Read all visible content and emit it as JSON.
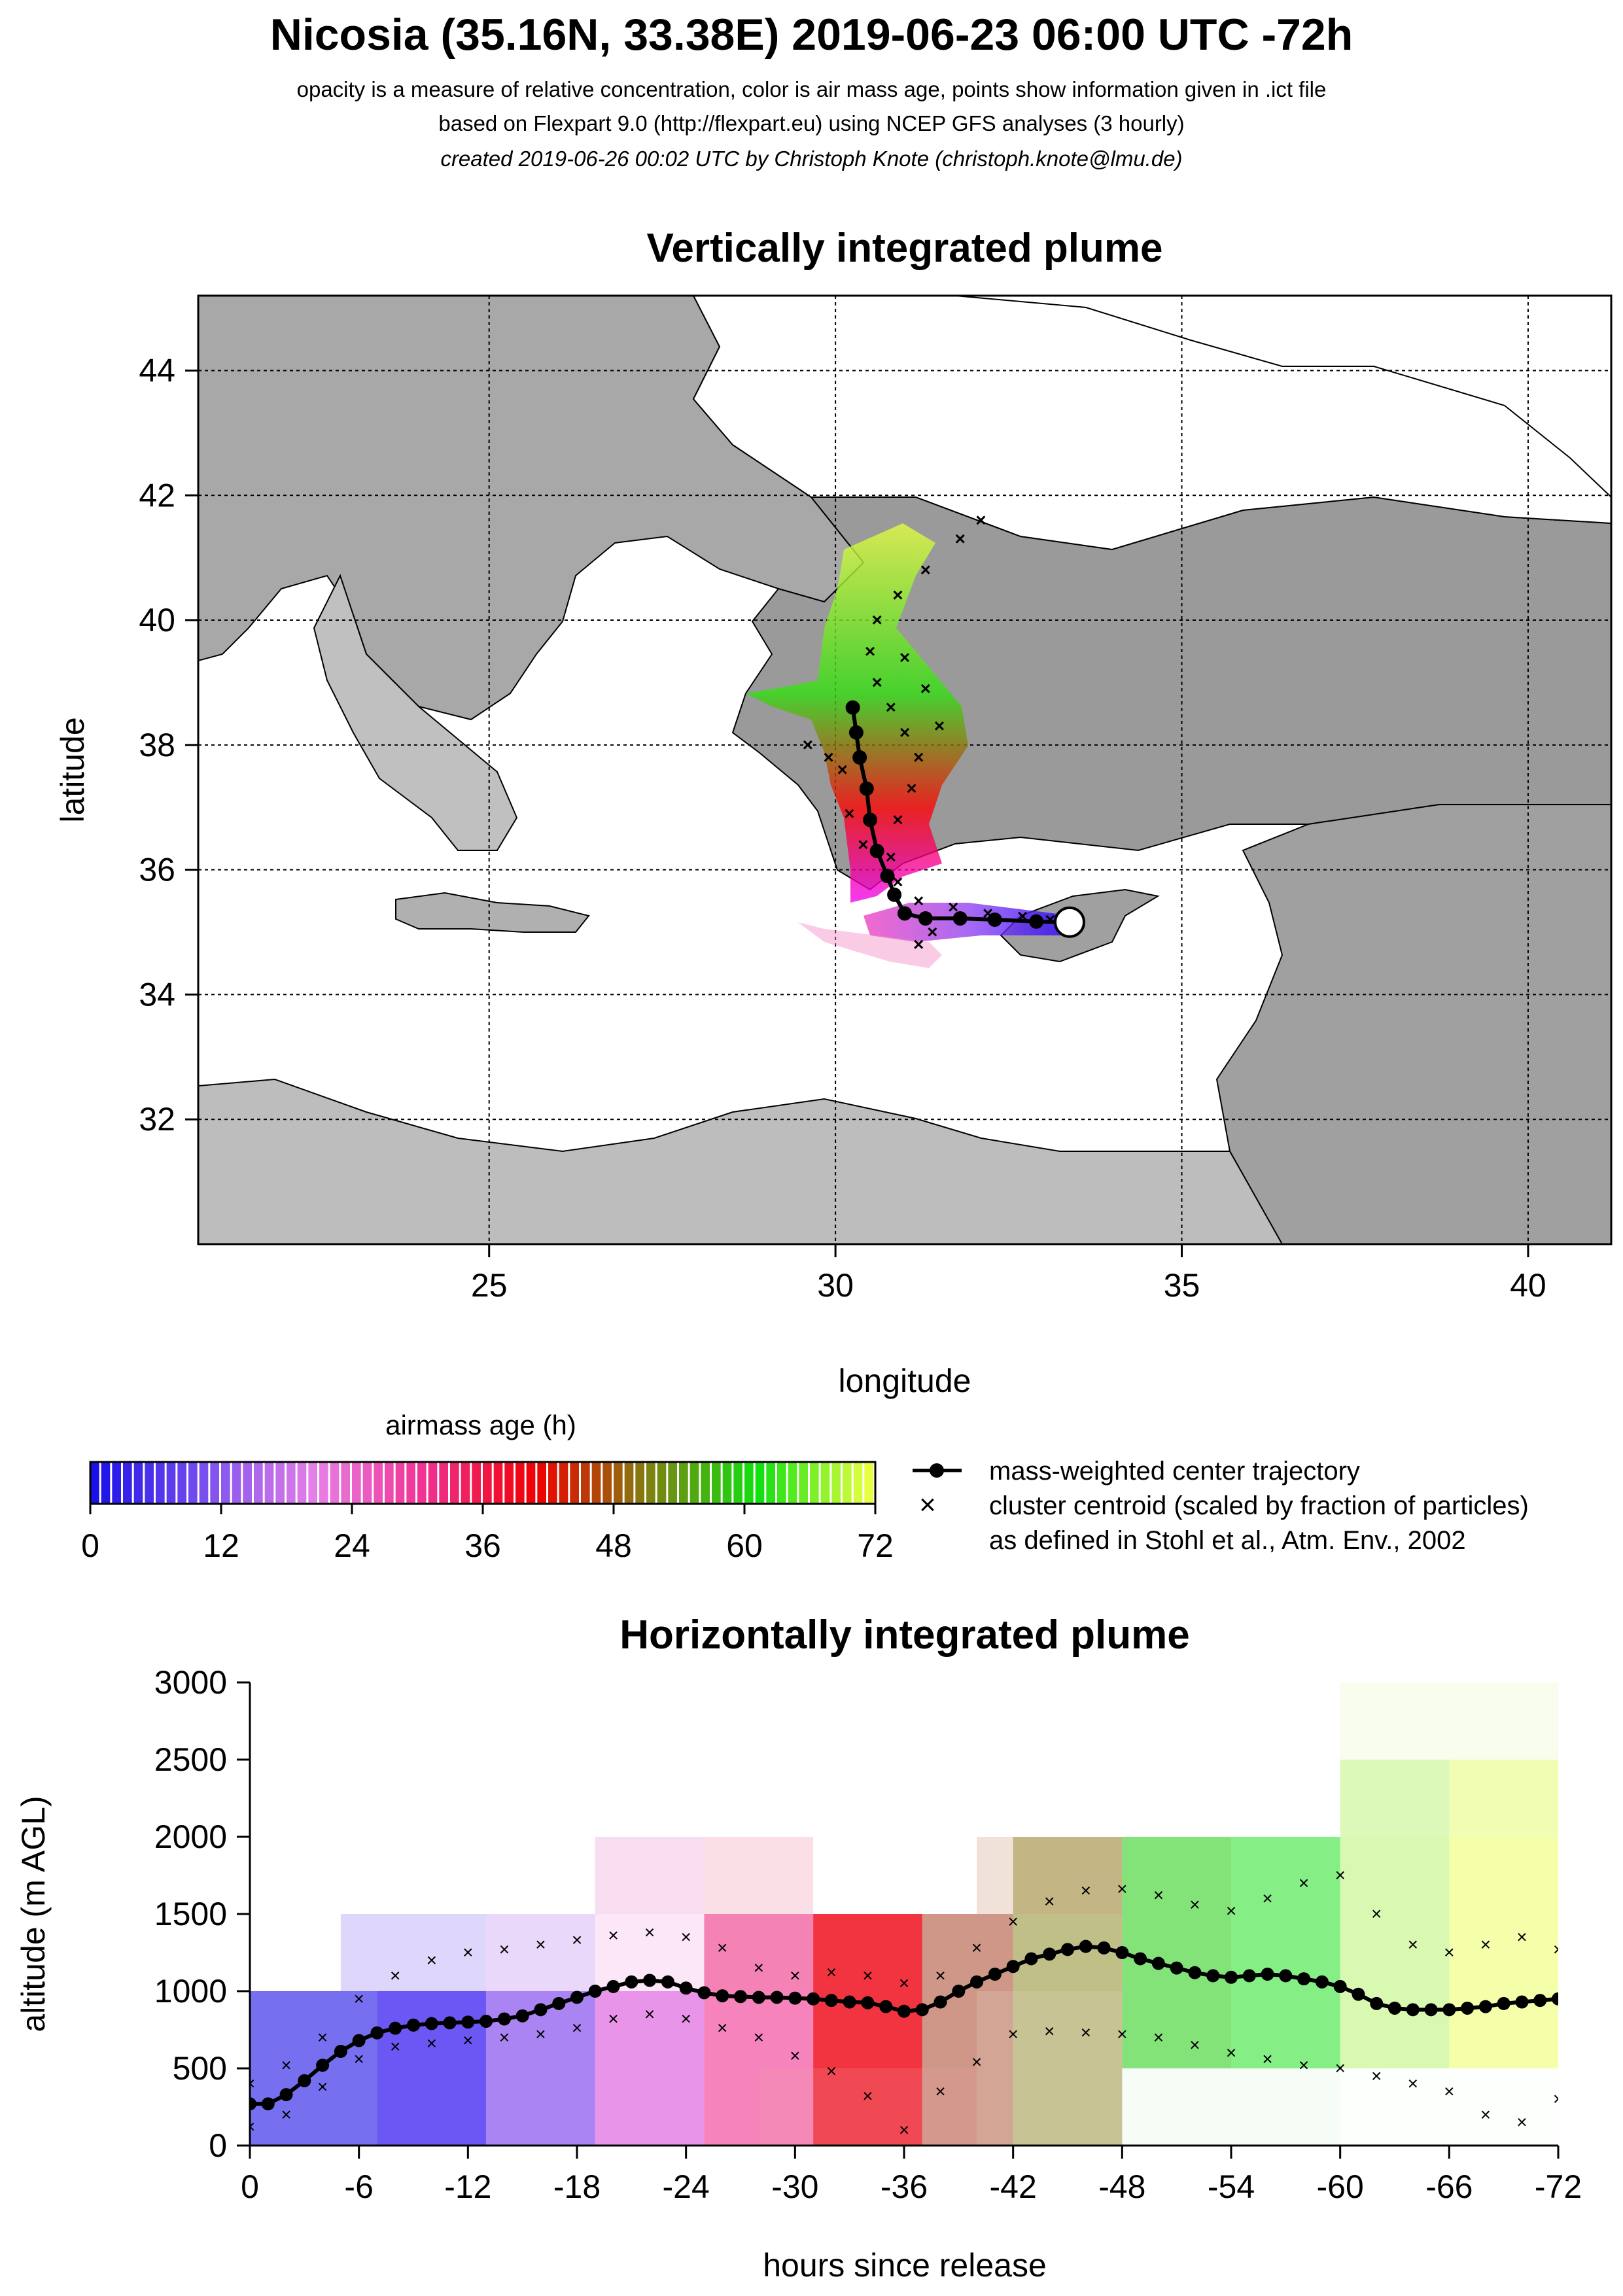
{
  "header": {
    "title": "Nicosia (35.16N, 33.38E) 2019-06-23 06:00 UTC -72h",
    "subtitle1": "opacity is a measure of relative concentration, color is air mass age, points show information given in .ict file",
    "subtitle2": "based on Flexpart 9.0 (http://flexpart.eu) using NCEP GFS analyses (3 hourly)",
    "subtitle3": "created 2019-06-26 00:02 UTC by Christoph Knote (christoph.knote@lmu.de)"
  },
  "colors": {
    "land": "#a8a8a8",
    "sea": "#ffffff",
    "age_scale": [
      "#1a10e8",
      "#7a50f0",
      "#e880e8",
      "#f03090",
      "#f00000",
      "#808010",
      "#10e010",
      "#e8ff40"
    ]
  },
  "chart_data": [
    {
      "type": "map",
      "title": "Vertically integrated plume",
      "xlabel": "longitude",
      "ylabel": "latitude",
      "xlim": [
        20.8,
        41.2
      ],
      "ylim": [
        30.0,
        45.2
      ],
      "xticks": [
        "25",
        "30",
        "35",
        "40"
      ],
      "yticks": [
        "32",
        "34",
        "36",
        "38",
        "40",
        "42",
        "44"
      ],
      "grid": true,
      "release_point": {
        "lon": 33.38,
        "lat": 35.16
      },
      "center_trajectory": [
        [
          33.38,
          35.16
        ],
        [
          32.9,
          35.17
        ],
        [
          32.3,
          35.2
        ],
        [
          31.8,
          35.22
        ],
        [
          31.3,
          35.22
        ],
        [
          31.0,
          35.3
        ],
        [
          30.85,
          35.6
        ],
        [
          30.75,
          35.9
        ],
        [
          30.6,
          36.3
        ],
        [
          30.5,
          36.8
        ],
        [
          30.45,
          37.3
        ],
        [
          30.35,
          37.8
        ],
        [
          30.3,
          38.2
        ],
        [
          30.25,
          38.6
        ]
      ],
      "cluster_centroids": [
        [
          33.1,
          35.2
        ],
        [
          32.7,
          35.25
        ],
        [
          32.2,
          35.3
        ],
        [
          31.7,
          35.4
        ],
        [
          31.2,
          35.5
        ],
        [
          30.9,
          35.8
        ],
        [
          30.8,
          36.2
        ],
        [
          30.9,
          36.8
        ],
        [
          31.1,
          37.3
        ],
        [
          31.2,
          37.8
        ],
        [
          31.0,
          38.2
        ],
        [
          30.8,
          38.6
        ],
        [
          30.6,
          39.0
        ],
        [
          30.5,
          39.5
        ],
        [
          30.6,
          40.0
        ],
        [
          30.9,
          40.4
        ],
        [
          31.3,
          40.8
        ],
        [
          31.8,
          41.3
        ],
        [
          32.1,
          41.6
        ],
        [
          30.1,
          37.6
        ],
        [
          29.9,
          37.8
        ],
        [
          29.6,
          38.0
        ],
        [
          30.4,
          36.4
        ],
        [
          30.2,
          36.9
        ],
        [
          31.4,
          35.0
        ],
        [
          31.2,
          34.8
        ],
        [
          31.5,
          38.3
        ],
        [
          31.3,
          38.9
        ],
        [
          31.0,
          39.4
        ]
      ],
      "plume_ages": [
        "0",
        "12",
        "24",
        "36",
        "48",
        "60",
        "72"
      ]
    },
    {
      "type": "heatmap",
      "title": "Horizontally integrated plume",
      "xlabel": "hours since release",
      "ylabel": "altitude (m AGL)",
      "xlim": [
        0,
        -72
      ],
      "ylim": [
        0,
        3000
      ],
      "xticks": [
        "0",
        "-6",
        "-12",
        "-18",
        "-24",
        "-30",
        "-36",
        "-42",
        "-48",
        "-54",
        "-60",
        "-66",
        "-72"
      ],
      "yticks": [
        "0",
        "500",
        "1000",
        "1500",
        "2000",
        "2500",
        "3000"
      ],
      "center_altitude": [
        [
          0,
          270
        ],
        [
          -1,
          270
        ],
        [
          -2,
          330
        ],
        [
          -3,
          420
        ],
        [
          -4,
          520
        ],
        [
          -5,
          610
        ],
        [
          -6,
          680
        ],
        [
          -7,
          730
        ],
        [
          -8,
          760
        ],
        [
          -9,
          780
        ],
        [
          -10,
          790
        ],
        [
          -11,
          795
        ],
        [
          -12,
          800
        ],
        [
          -13,
          805
        ],
        [
          -14,
          820
        ],
        [
          -15,
          840
        ],
        [
          -16,
          880
        ],
        [
          -17,
          920
        ],
        [
          -18,
          960
        ],
        [
          -19,
          1000
        ],
        [
          -20,
          1030
        ],
        [
          -21,
          1060
        ],
        [
          -22,
          1070
        ],
        [
          -23,
          1060
        ],
        [
          -24,
          1020
        ],
        [
          -25,
          990
        ],
        [
          -26,
          970
        ],
        [
          -27,
          965
        ],
        [
          -28,
          960
        ],
        [
          -29,
          960
        ],
        [
          -30,
          955
        ],
        [
          -31,
          950
        ],
        [
          -32,
          940
        ],
        [
          -33,
          930
        ],
        [
          -34,
          925
        ],
        [
          -35,
          900
        ],
        [
          -36,
          870
        ],
        [
          -37,
          880
        ],
        [
          -38,
          930
        ],
        [
          -39,
          1000
        ],
        [
          -40,
          1060
        ],
        [
          -41,
          1110
        ],
        [
          -42,
          1160
        ],
        [
          -43,
          1210
        ],
        [
          -44,
          1240
        ],
        [
          -45,
          1270
        ],
        [
          -46,
          1290
        ],
        [
          -47,
          1280
        ],
        [
          -48,
          1250
        ],
        [
          -49,
          1210
        ],
        [
          -50,
          1180
        ],
        [
          -51,
          1150
        ],
        [
          -52,
          1120
        ],
        [
          -53,
          1100
        ],
        [
          -54,
          1090
        ],
        [
          -55,
          1100
        ],
        [
          -56,
          1110
        ],
        [
          -57,
          1100
        ],
        [
          -58,
          1080
        ],
        [
          -59,
          1060
        ],
        [
          -60,
          1030
        ],
        [
          -61,
          980
        ],
        [
          -62,
          920
        ],
        [
          -63,
          890
        ],
        [
          -64,
          880
        ],
        [
          -65,
          880
        ],
        [
          -66,
          880
        ],
        [
          -67,
          890
        ],
        [
          -68,
          900
        ],
        [
          -69,
          920
        ],
        [
          -70,
          930
        ],
        [
          -71,
          940
        ],
        [
          -72,
          950
        ]
      ],
      "cluster_upper": [
        [
          0,
          400
        ],
        [
          -2,
          520
        ],
        [
          -4,
          700
        ],
        [
          -6,
          950
        ],
        [
          -8,
          1100
        ],
        [
          -10,
          1200
        ],
        [
          -12,
          1250
        ],
        [
          -14,
          1270
        ],
        [
          -16,
          1300
        ],
        [
          -18,
          1330
        ],
        [
          -20,
          1360
        ],
        [
          -22,
          1380
        ],
        [
          -24,
          1350
        ],
        [
          -26,
          1280
        ],
        [
          -28,
          1150
        ],
        [
          -30,
          1100
        ],
        [
          -32,
          1120
        ],
        [
          -34,
          1100
        ],
        [
          -36,
          1050
        ],
        [
          -38,
          1100
        ],
        [
          -40,
          1280
        ],
        [
          -42,
          1450
        ],
        [
          -44,
          1580
        ],
        [
          -46,
          1650
        ],
        [
          -48,
          1660
        ],
        [
          -50,
          1620
        ],
        [
          -52,
          1560
        ],
        [
          -54,
          1520
        ],
        [
          -56,
          1600
        ],
        [
          -58,
          1700
        ],
        [
          -60,
          1750
        ],
        [
          -62,
          1500
        ],
        [
          -64,
          1300
        ],
        [
          -66,
          1250
        ],
        [
          -68,
          1300
        ],
        [
          -70,
          1350
        ],
        [
          -72,
          1270
        ]
      ],
      "cluster_lower": [
        [
          0,
          120
        ],
        [
          -2,
          200
        ],
        [
          -4,
          380
        ],
        [
          -6,
          560
        ],
        [
          -8,
          640
        ],
        [
          -10,
          660
        ],
        [
          -12,
          680
        ],
        [
          -14,
          700
        ],
        [
          -16,
          720
        ],
        [
          -18,
          760
        ],
        [
          -20,
          820
        ],
        [
          -22,
          850
        ],
        [
          -24,
          820
        ],
        [
          -26,
          760
        ],
        [
          -28,
          700
        ],
        [
          -30,
          580
        ],
        [
          -32,
          480
        ],
        [
          -34,
          320
        ],
        [
          -36,
          100
        ],
        [
          -38,
          350
        ],
        [
          -40,
          540
        ],
        [
          -42,
          720
        ],
        [
          -44,
          740
        ],
        [
          -46,
          730
        ],
        [
          -48,
          720
        ],
        [
          -50,
          700
        ],
        [
          -52,
          650
        ],
        [
          -54,
          600
        ],
        [
          -56,
          560
        ],
        [
          -58,
          520
        ],
        [
          -60,
          500
        ],
        [
          -62,
          450
        ],
        [
          -64,
          400
        ],
        [
          -66,
          350
        ],
        [
          -68,
          200
        ],
        [
          -70,
          150
        ],
        [
          -72,
          300
        ]
      ],
      "cells": [
        [
          0,
          7,
          0,
          2,
          "#1a10e8",
          0.6
        ],
        [
          7,
          13,
          0,
          2,
          "#3a20f0",
          0.75
        ],
        [
          13,
          19,
          0,
          2,
          "#8850f0",
          0.7
        ],
        [
          19,
          25,
          0,
          2,
          "#e070e0",
          0.75
        ],
        [
          25,
          31,
          0,
          3,
          "#f03090",
          0.6
        ],
        [
          31,
          37,
          0,
          3,
          "#f01020",
          0.85
        ],
        [
          37,
          42,
          0,
          3,
          "#a03010",
          0.5
        ],
        [
          42,
          48,
          0,
          4,
          "#808010",
          0.5
        ],
        [
          48,
          54,
          1,
          4,
          "#30d020",
          0.6
        ],
        [
          54,
          60,
          1,
          4,
          "#20e020",
          0.55
        ],
        [
          60,
          66,
          1,
          5,
          "#a0f040",
          0.4
        ],
        [
          66,
          72,
          1,
          5,
          "#e8ff40",
          0.45
        ],
        [
          5,
          13,
          2,
          3,
          "#7a60f0",
          0.25
        ],
        [
          13,
          19,
          2,
          3,
          "#c090f0",
          0.35
        ],
        [
          19,
          25,
          2,
          4,
          "#f0a0e0",
          0.25
        ],
        [
          25,
          31,
          2,
          4,
          "#f080a0",
          0.25
        ],
        [
          28,
          40,
          0,
          1,
          "#f0a0a0",
          0.2
        ],
        [
          40,
          48,
          0,
          2,
          "#e0d0c0",
          0.25
        ],
        [
          48,
          60,
          0,
          1,
          "#d0f0d0",
          0.2
        ],
        [
          60,
          72,
          0,
          1,
          "#f0fff0",
          0.2
        ],
        [
          60,
          72,
          4,
          6,
          "#e8f8c8",
          0.3
        ],
        [
          40,
          48,
          3,
          4,
          "#d0a080",
          0.3
        ],
        [
          19,
          25,
          3,
          4,
          "#f0c0e0",
          0.25
        ]
      ]
    },
    {
      "type": "colorbar",
      "title": "airmass age (h)",
      "ticks": [
        "0",
        "12",
        "24",
        "36",
        "48",
        "60",
        "72"
      ]
    },
    {
      "type": "legend",
      "entries": [
        "mass-weighted center trajectory",
        "cluster centroid (scaled by fraction of particles)",
        "as defined in Stohl et al., Atm. Env., 2002"
      ]
    }
  ]
}
